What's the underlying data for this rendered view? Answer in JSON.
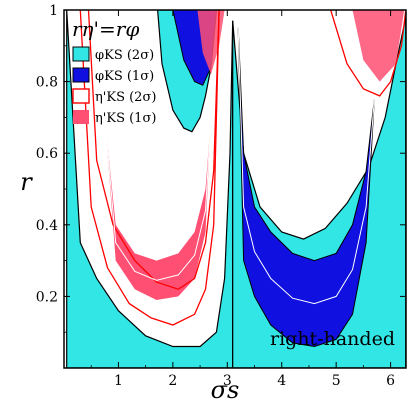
{
  "chart_data": {
    "type": "area",
    "xlabel": "σs",
    "ylabel": "r",
    "xlim": [
      0,
      6.283
    ],
    "ylim": [
      0,
      1
    ],
    "x_ticks": [
      1,
      2,
      3,
      4,
      5,
      6
    ],
    "y_ticks": [
      0.2,
      0.4,
      0.6,
      0.8,
      1
    ],
    "y_tick_labels": [
      "0.2",
      "0.4",
      "0.6",
      "0.8",
      "1"
    ],
    "legend_title": "rη'=rφ",
    "legend_position": "top-left",
    "annotation": "right-handed",
    "colors": {
      "phi_2sigma": "#33e6e6",
      "phi_1sigma": "#1010e0",
      "eta_2sigma": "#ff0000",
      "eta_1sigma": "#ff4f73"
    },
    "series": [
      {
        "name": "φKS (2σ)",
        "regions": [
          {
            "x": [
              0.05,
              0.3,
              0.6,
              1.0,
              1.5,
              2.0,
              2.5,
              2.8,
              2.95,
              3.05,
              3.1
            ],
            "lower": [
              0.0,
              0.0,
              0.0,
              0.0,
              0.0,
              0.0,
              0.0,
              0.0,
              0.0,
              0.0,
              0.0
            ],
            "upper": [
              1.0,
              0.35,
              0.25,
              0.16,
              0.09,
              0.06,
              0.06,
              0.1,
              0.25,
              0.6,
              0.97
            ]
          },
          {
            "x": [
              3.1,
              3.3,
              3.6,
              4.0,
              4.4,
              4.8,
              5.2,
              5.6,
              5.9,
              6.1,
              6.28
            ],
            "lower": [
              0.0,
              0.0,
              0.0,
              0.0,
              0.0,
              0.0,
              0.0,
              0.0,
              0.0,
              0.0,
              0.0
            ],
            "upper": [
              0.97,
              0.6,
              0.45,
              0.38,
              0.36,
              0.39,
              0.46,
              0.56,
              0.7,
              0.85,
              0.98
            ]
          },
          {
            "x": [
              1.72,
              1.8,
              2.0,
              2.2,
              2.35,
              2.5,
              2.6,
              2.7,
              2.8
            ],
            "lower": [
              1.0,
              0.85,
              0.72,
              0.67,
              0.66,
              0.7,
              0.76,
              0.84,
              1.0
            ],
            "upper": [
              1.0,
              1.0,
              1.0,
              1.0,
              1.0,
              1.0,
              1.0,
              1.0,
              1.0
            ]
          }
        ]
      },
      {
        "name": "φKS (1σ)",
        "regions": [
          {
            "x": [
              3.2,
              3.3,
              3.5,
              3.8,
              4.2,
              4.6,
              5.0,
              5.3,
              5.55,
              5.7
            ],
            "outer": [
              0.95,
              0.6,
              0.45,
              0.38,
              0.32,
              0.3,
              0.32,
              0.4,
              0.55,
              0.75
            ],
            "inner": [
              0.95,
              0.3,
              0.2,
              0.12,
              0.07,
              0.06,
              0.08,
              0.15,
              0.35,
              0.75
            ]
          },
          {
            "x": [
              2.0,
              2.2,
              2.4,
              2.55,
              2.7,
              2.8
            ],
            "lower": [
              1.0,
              0.86,
              0.8,
              0.79,
              0.84,
              1.0
            ],
            "upper": [
              1.0,
              1.0,
              1.0,
              1.0,
              1.0,
              1.0
            ]
          }
        ]
      },
      {
        "name": "η'KS (2σ)",
        "curves": [
          {
            "x": [
              0.45,
              0.6,
              0.9,
              1.3,
              1.7,
              2.1,
              2.4,
              2.6,
              2.75,
              2.85
            ],
            "y": [
              1.0,
              0.58,
              0.4,
              0.3,
              0.24,
              0.22,
              0.25,
              0.35,
              0.55,
              1.0
            ]
          },
          {
            "x": [
              0.3,
              0.5,
              0.8,
              1.2,
              1.6,
              2.0,
              2.4,
              2.6,
              2.75,
              2.85
            ],
            "y": [
              1.0,
              0.45,
              0.28,
              0.18,
              0.14,
              0.12,
              0.15,
              0.22,
              0.4,
              1.0
            ]
          },
          {
            "x": [
              4.9,
              5.2,
              5.5,
              5.8,
              6.0,
              6.2,
              6.28
            ],
            "y": [
              1.0,
              0.85,
              0.78,
              0.76,
              0.8,
              0.9,
              1.0
            ]
          }
        ]
      },
      {
        "name": "η'KS (1σ)",
        "regions": [
          {
            "x": [
              0.75,
              0.95,
              1.3,
              1.7,
              2.1,
              2.4,
              2.6,
              2.7
            ],
            "outer": [
              0.7,
              0.4,
              0.32,
              0.3,
              0.32,
              0.38,
              0.5,
              0.7
            ],
            "inner": [
              0.7,
              0.3,
              0.22,
              0.19,
              0.2,
              0.25,
              0.38,
              0.7
            ]
          },
          {
            "x": [
              2.45,
              2.55,
              2.7,
              2.85,
              2.95
            ],
            "lower": [
              1.0,
              0.88,
              0.82,
              0.9,
              1.0
            ],
            "upper": [
              1.0,
              1.0,
              1.0,
              1.0,
              1.0
            ]
          },
          {
            "x": [
              5.3,
              5.5,
              5.8,
              6.1,
              6.25
            ],
            "lower": [
              1.0,
              0.86,
              0.8,
              0.85,
              1.0
            ],
            "upper": [
              1.0,
              1.0,
              1.0,
              1.0,
              1.0
            ]
          }
        ]
      }
    ]
  }
}
